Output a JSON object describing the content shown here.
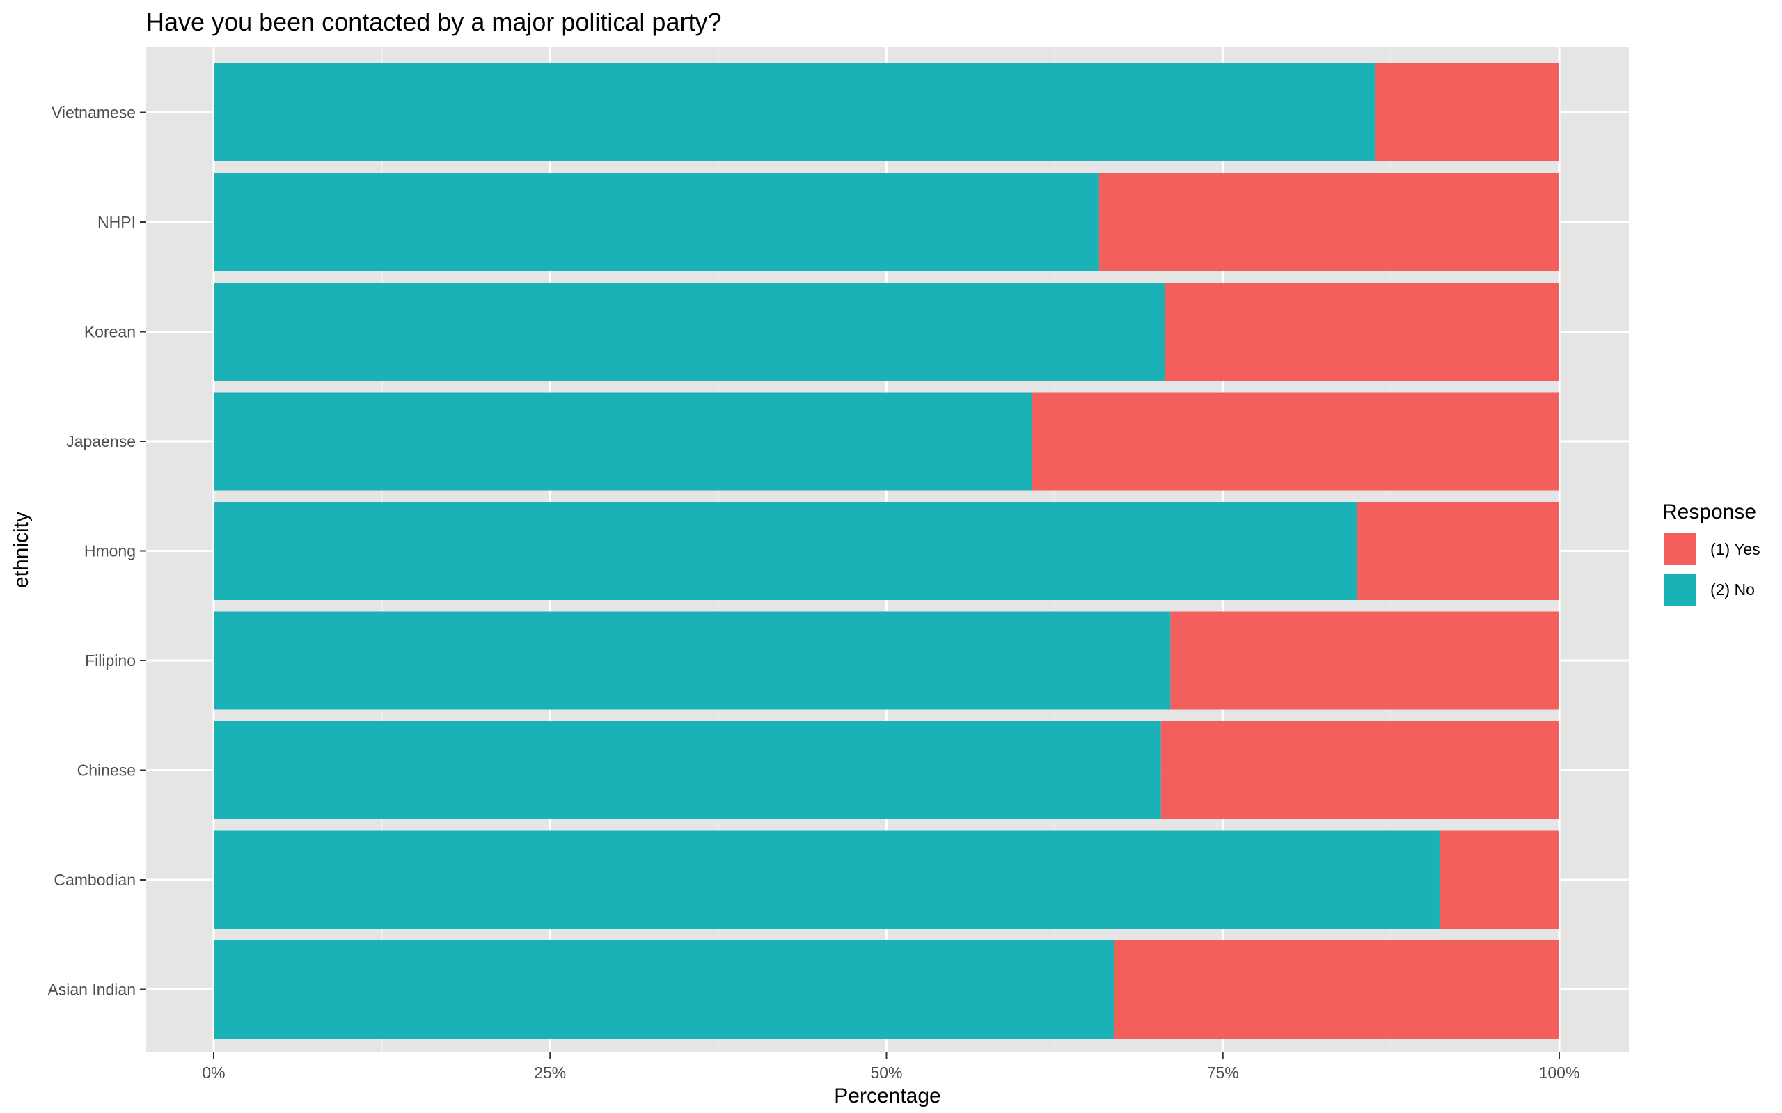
{
  "chart_data": {
    "type": "bar",
    "orientation": "horizontal",
    "stacked": true,
    "title": "Have you been contacted by a major political party?",
    "xlabel": "Percentage",
    "ylabel": "ethnicity",
    "xlim": [
      0,
      100
    ],
    "x_ticks": [
      "0%",
      "25%",
      "50%",
      "75%",
      "100%"
    ],
    "x_tick_values": [
      0,
      25,
      50,
      75,
      100
    ],
    "grid": true,
    "legend": {
      "title": "Response",
      "position": "right"
    },
    "categories": [
      "Asian Indian",
      "Cambodian",
      "Chinese",
      "Filipino",
      "Hmong",
      "Japaense",
      "Korean",
      "NHPI",
      "Vietnamese"
    ],
    "series": [
      {
        "name": "(2) No",
        "color": "#1AB2B6",
        "values": [
          66.9,
          91.1,
          70.4,
          71.1,
          85.0,
          60.8,
          70.7,
          65.8,
          86.3
        ]
      },
      {
        "name": "(1) Yes",
        "color": "#F25F5C",
        "values": [
          33.1,
          8.9,
          29.6,
          28.9,
          15.0,
          39.2,
          29.3,
          34.2,
          13.7
        ]
      }
    ]
  },
  "colors": {
    "panel": "#E5E5E5",
    "grid_major": "#FFFFFF",
    "grid_minor": "#F2F2F2",
    "tick": "#333333"
  }
}
